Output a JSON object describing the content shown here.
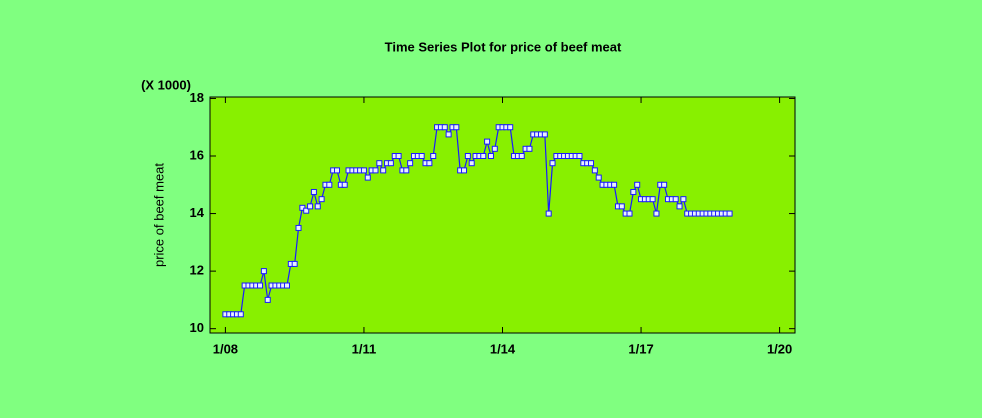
{
  "chart_data": {
    "type": "line",
    "title": "Time Series Plot for price of beef meat",
    "y_label": "price of beef meat",
    "y_multiplier": "(X 1000)",
    "x": [
      "1/08",
      "2/08",
      "3/08",
      "4/08",
      "5/08",
      "6/08",
      "7/08",
      "8/08",
      "9/08",
      "10/08",
      "11/08",
      "12/08",
      "1/09",
      "2/09",
      "3/09",
      "4/09",
      "5/09",
      "6/09",
      "7/09",
      "8/09",
      "9/09",
      "10/09",
      "11/09",
      "12/09",
      "1/10",
      "2/10",
      "3/10",
      "4/10",
      "5/10",
      "6/10",
      "7/10",
      "8/10",
      "9/10",
      "10/10",
      "11/10",
      "12/10",
      "1/11",
      "2/11",
      "3/11",
      "4/11",
      "5/11",
      "6/11",
      "7/11",
      "8/11",
      "9/11",
      "10/11",
      "11/11",
      "12/11",
      "1/12",
      "2/12",
      "3/12",
      "4/12",
      "5/12",
      "6/12",
      "7/12",
      "8/12",
      "9/12",
      "10/12",
      "11/12",
      "12/12",
      "1/13",
      "2/13",
      "3/13",
      "4/13",
      "5/13",
      "6/13",
      "7/13",
      "8/13",
      "9/13",
      "10/13",
      "11/13",
      "12/13",
      "1/14",
      "2/14",
      "3/14",
      "4/14",
      "5/14",
      "6/14",
      "7/14",
      "8/14",
      "9/14",
      "10/14",
      "11/14",
      "12/14",
      "1/15",
      "2/15",
      "3/15",
      "4/15",
      "5/15",
      "6/15",
      "7/15",
      "8/15",
      "9/15",
      "10/15",
      "11/15",
      "12/15",
      "1/16",
      "2/16",
      "3/16",
      "4/16",
      "5/16",
      "6/16",
      "7/16",
      "8/16",
      "9/16",
      "10/16",
      "11/16",
      "12/16",
      "1/17",
      "2/17",
      "3/17",
      "4/17",
      "5/17",
      "6/17",
      "7/17",
      "8/17",
      "9/17",
      "10/17",
      "11/17",
      "12/17",
      "1/18",
      "2/18",
      "3/18",
      "4/18",
      "5/18",
      "6/18",
      "7/18",
      "8/18",
      "9/18",
      "10/18",
      "11/18",
      "12/18"
    ],
    "series": [
      {
        "name": "price of beef meat",
        "color": "#1a1aff",
        "values": [
          10.5,
          10.5,
          10.5,
          10.5,
          10.5,
          11.5,
          11.5,
          11.5,
          11.5,
          11.5,
          12,
          11,
          11.5,
          11.5,
          11.5,
          11.5,
          11.5,
          12.25,
          12.25,
          13.5,
          14.2,
          14.1,
          14.25,
          14.75,
          14.25,
          14.5,
          15,
          15,
          15.5,
          15.5,
          15,
          15,
          15.5,
          15.5,
          15.5,
          15.5,
          15.5,
          15.25,
          15.5,
          15.5,
          15.75,
          15.5,
          15.75,
          15.75,
          16,
          16,
          15.5,
          15.5,
          15.75,
          16,
          16,
          16,
          15.75,
          15.75,
          16,
          17,
          17,
          17,
          16.75,
          17,
          17,
          15.5,
          15.5,
          16,
          15.75,
          16,
          16,
          16,
          16.5,
          16,
          16.25,
          17,
          17,
          17,
          17,
          16,
          16,
          16,
          16.25,
          16.25,
          16.75,
          16.75,
          16.75,
          16.75,
          14,
          15.75,
          16,
          16,
          16,
          16,
          16,
          16,
          16,
          15.75,
          15.75,
          15.75,
          15.5,
          15.25,
          15,
          15,
          15,
          15,
          14.25,
          14.25,
          14,
          14,
          14.75,
          15,
          14.5,
          14.5,
          14.5,
          14.5,
          14,
          15,
          15,
          14.5,
          14.5,
          14.5,
          14.25,
          14.5,
          14,
          14,
          14,
          14,
          14,
          14,
          14,
          14,
          14,
          14,
          14,
          14
        ]
      }
    ],
    "xlim": [
      "9/07",
      "5/20"
    ],
    "xticks": [
      "1/08",
      "1/11",
      "1/14",
      "1/17",
      "1/20"
    ],
    "ylim": [
      9.85,
      18.05
    ],
    "yticks": [
      10,
      12,
      14,
      16,
      18
    ],
    "plot_color": "#88f000"
  }
}
